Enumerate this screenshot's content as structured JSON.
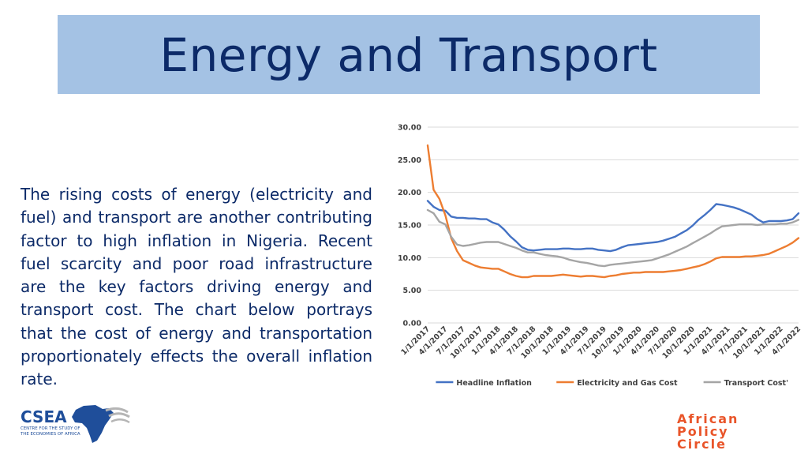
{
  "slide": {
    "title": "Energy and Transport",
    "body": "The rising costs of energy (electricity and fuel) and transport are another contributing factor to high inflation in Nigeria. Recent fuel scarcity and poor road infrastructure are the key factors driving energy and transport cost. The chart below portrays that the cost of energy and transportation proportionately effects the overall inflation rate."
  },
  "logos": {
    "csea": {
      "name": "CSEA",
      "line1": "CENTRE FOR THE STUDY OF",
      "line2": "THE ECONOMIES OF AFRICA",
      "color": "#1f4e9a"
    },
    "apc": {
      "line1": "African",
      "line2": "Policy",
      "line3": "Circle",
      "color": "#e9552a"
    }
  },
  "chart_data": {
    "type": "line",
    "title": "",
    "xlabel": "",
    "ylabel": "",
    "ylim": [
      0,
      30
    ],
    "yticks": [
      "0.00",
      "5.00",
      "10.00",
      "15.00",
      "20.00",
      "25.00",
      "30.00"
    ],
    "grid": true,
    "legend_position": "bottom",
    "x": [
      "1/1/2017",
      "2/1/2017",
      "3/1/2017",
      "4/1/2017",
      "5/1/2017",
      "6/1/2017",
      "7/1/2017",
      "8/1/2017",
      "9/1/2017",
      "10/1/2017",
      "11/1/2017",
      "12/1/2017",
      "1/1/2018",
      "2/1/2018",
      "3/1/2018",
      "4/1/2018",
      "5/1/2018",
      "6/1/2018",
      "7/1/2018",
      "8/1/2018",
      "9/1/2018",
      "10/1/2018",
      "11/1/2018",
      "12/1/2018",
      "1/1/2019",
      "2/1/2019",
      "3/1/2019",
      "4/1/2019",
      "5/1/2019",
      "6/1/2019",
      "7/1/2019",
      "8/1/2019",
      "9/1/2019",
      "10/1/2019",
      "11/1/2019",
      "12/1/2019",
      "1/1/2020",
      "2/1/2020",
      "3/1/2020",
      "4/1/2020",
      "5/1/2020",
      "6/1/2020",
      "7/1/2020",
      "8/1/2020",
      "9/1/2020",
      "10/1/2020",
      "11/1/2020",
      "12/1/2020",
      "1/1/2021",
      "2/1/2021",
      "3/1/2021",
      "4/1/2021",
      "5/1/2021",
      "6/1/2021",
      "7/1/2021",
      "8/1/2021",
      "9/1/2021",
      "10/1/2021",
      "11/1/2021",
      "12/1/2021",
      "1/1/2022",
      "2/1/2022",
      "3/1/2022",
      "4/1/2022"
    ],
    "x_tick_labels": [
      "1/1/2017",
      "4/1/2017",
      "7/1/2017",
      "10/1/2017",
      "1/1/2018",
      "4/1/2018",
      "7/1/2018",
      "10/1/2018",
      "1/1/2019",
      "4/1/2019",
      "7/1/2019",
      "10/1/2019",
      "1/1/2020",
      "4/1/2020",
      "7/1/2020",
      "10/1/2020",
      "1/1/2021",
      "4/1/2021",
      "7/1/2021",
      "10/1/2021",
      "1/1/2022",
      "4/1/2022"
    ],
    "series": [
      {
        "name": "Headline Inflation",
        "color": "#4472c4",
        "values": [
          18.7,
          17.8,
          17.3,
          17.2,
          16.3,
          16.1,
          16.1,
          16.0,
          16.0,
          15.9,
          15.9,
          15.4,
          15.1,
          14.3,
          13.3,
          12.5,
          11.6,
          11.2,
          11.1,
          11.2,
          11.3,
          11.3,
          11.3,
          11.4,
          11.4,
          11.3,
          11.3,
          11.4,
          11.4,
          11.2,
          11.1,
          11.0,
          11.2,
          11.6,
          11.9,
          12.0,
          12.1,
          12.2,
          12.3,
          12.4,
          12.6,
          12.9,
          13.2,
          13.7,
          14.2,
          14.9,
          15.8,
          16.5,
          17.3,
          18.2,
          18.1,
          17.9,
          17.7,
          17.4,
          17.0,
          16.6,
          15.9,
          15.4,
          15.6,
          15.6,
          15.6,
          15.7,
          15.9,
          16.8
        ]
      },
      {
        "name": "Electricity and Gas Cost",
        "color": "#ed7d31",
        "values": [
          27.2,
          20.4,
          19.0,
          16.5,
          13.0,
          11.0,
          9.6,
          9.2,
          8.8,
          8.5,
          8.4,
          8.3,
          8.3,
          7.9,
          7.5,
          7.2,
          7.0,
          7.0,
          7.2,
          7.2,
          7.2,
          7.2,
          7.3,
          7.4,
          7.3,
          7.2,
          7.1,
          7.2,
          7.2,
          7.1,
          7.0,
          7.2,
          7.3,
          7.5,
          7.6,
          7.7,
          7.7,
          7.8,
          7.8,
          7.8,
          7.8,
          7.9,
          8.0,
          8.1,
          8.3,
          8.5,
          8.7,
          9.0,
          9.4,
          9.9,
          10.1,
          10.1,
          10.1,
          10.1,
          10.2,
          10.2,
          10.3,
          10.4,
          10.6,
          11.0,
          11.4,
          11.8,
          12.3,
          13.0
        ]
      },
      {
        "name": "Transport Cost'",
        "color": "#a5a5a5",
        "values": [
          17.3,
          16.8,
          15.5,
          15.1,
          13.2,
          12.0,
          11.8,
          11.9,
          12.1,
          12.3,
          12.4,
          12.4,
          12.4,
          12.1,
          11.8,
          11.5,
          11.1,
          10.8,
          10.8,
          10.6,
          10.4,
          10.3,
          10.2,
          10.0,
          9.7,
          9.5,
          9.3,
          9.2,
          9.0,
          8.8,
          8.7,
          8.9,
          9.0,
          9.1,
          9.2,
          9.3,
          9.4,
          9.5,
          9.6,
          9.9,
          10.2,
          10.5,
          10.9,
          11.3,
          11.7,
          12.2,
          12.7,
          13.2,
          13.7,
          14.3,
          14.8,
          14.9,
          15.0,
          15.1,
          15.1,
          15.1,
          15.0,
          15.1,
          15.1,
          15.1,
          15.2,
          15.2,
          15.4,
          15.8
        ]
      }
    ]
  }
}
